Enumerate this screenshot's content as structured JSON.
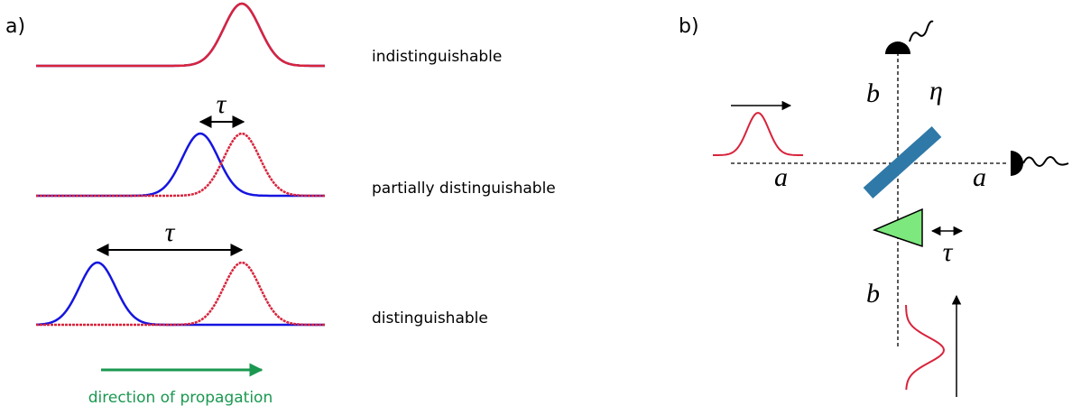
{
  "panel_a": {
    "label": "a)",
    "rows": [
      {
        "label": "indistinguishable"
      },
      {
        "label": "partially distinguishable",
        "delay": "τ"
      },
      {
        "label": "distinguishable",
        "delay": "τ"
      }
    ],
    "arrow_label": "direction of propagation"
  },
  "panel_b": {
    "label": "b)",
    "port_a_in": "a",
    "port_a_out": "a",
    "port_b_top": "b",
    "port_b_bottom": "b",
    "splitter": "η",
    "delay": "τ"
  }
}
